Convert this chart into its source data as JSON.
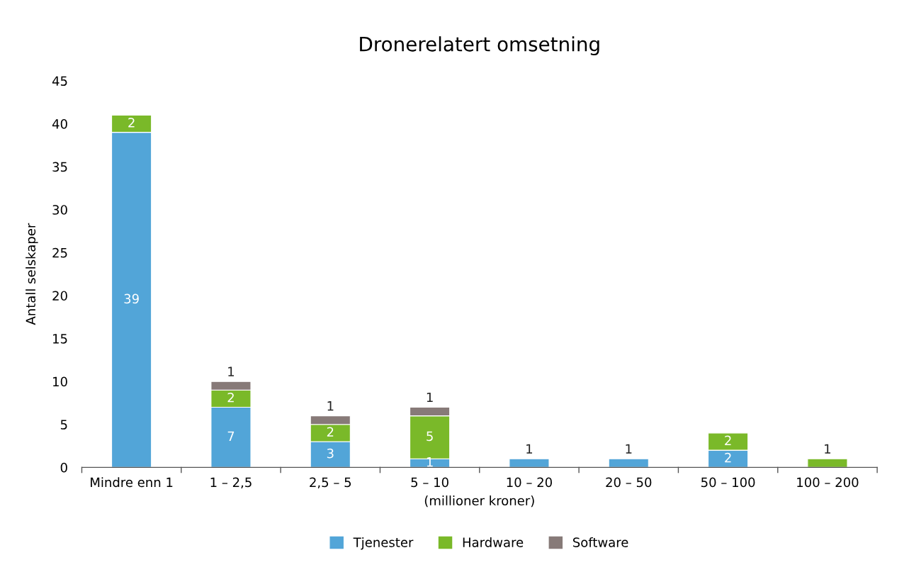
{
  "chart_data": {
    "type": "bar",
    "title": "Dronerelatert omsetning",
    "xlabel": "(millioner kroner)",
    "ylabel": "Antall selskaper",
    "categories": [
      "Mindre enn 1",
      "1 – 2,5",
      "2,5 – 5",
      "5 – 10",
      "10 – 20",
      "20 – 50",
      "50 – 100",
      "100 – 200"
    ],
    "series": [
      {
        "name": "Tjenester",
        "color": "#52a5d8",
        "values": [
          39,
          7,
          3,
          1,
          1,
          1,
          2,
          null
        ]
      },
      {
        "name": "Hardware",
        "color": "#7ab929",
        "values": [
          2,
          2,
          2,
          5,
          null,
          null,
          2,
          1
        ]
      },
      {
        "name": "Software",
        "color": "#877a78",
        "values": [
          null,
          1,
          1,
          1,
          null,
          null,
          null,
          null
        ]
      }
    ],
    "stacked": true,
    "data_labels": true,
    "ylim": [
      0,
      45
    ],
    "yticks": [
      0,
      5,
      10,
      15,
      20,
      25,
      30,
      35,
      40,
      45
    ],
    "grid": false,
    "legend": "bottom"
  }
}
